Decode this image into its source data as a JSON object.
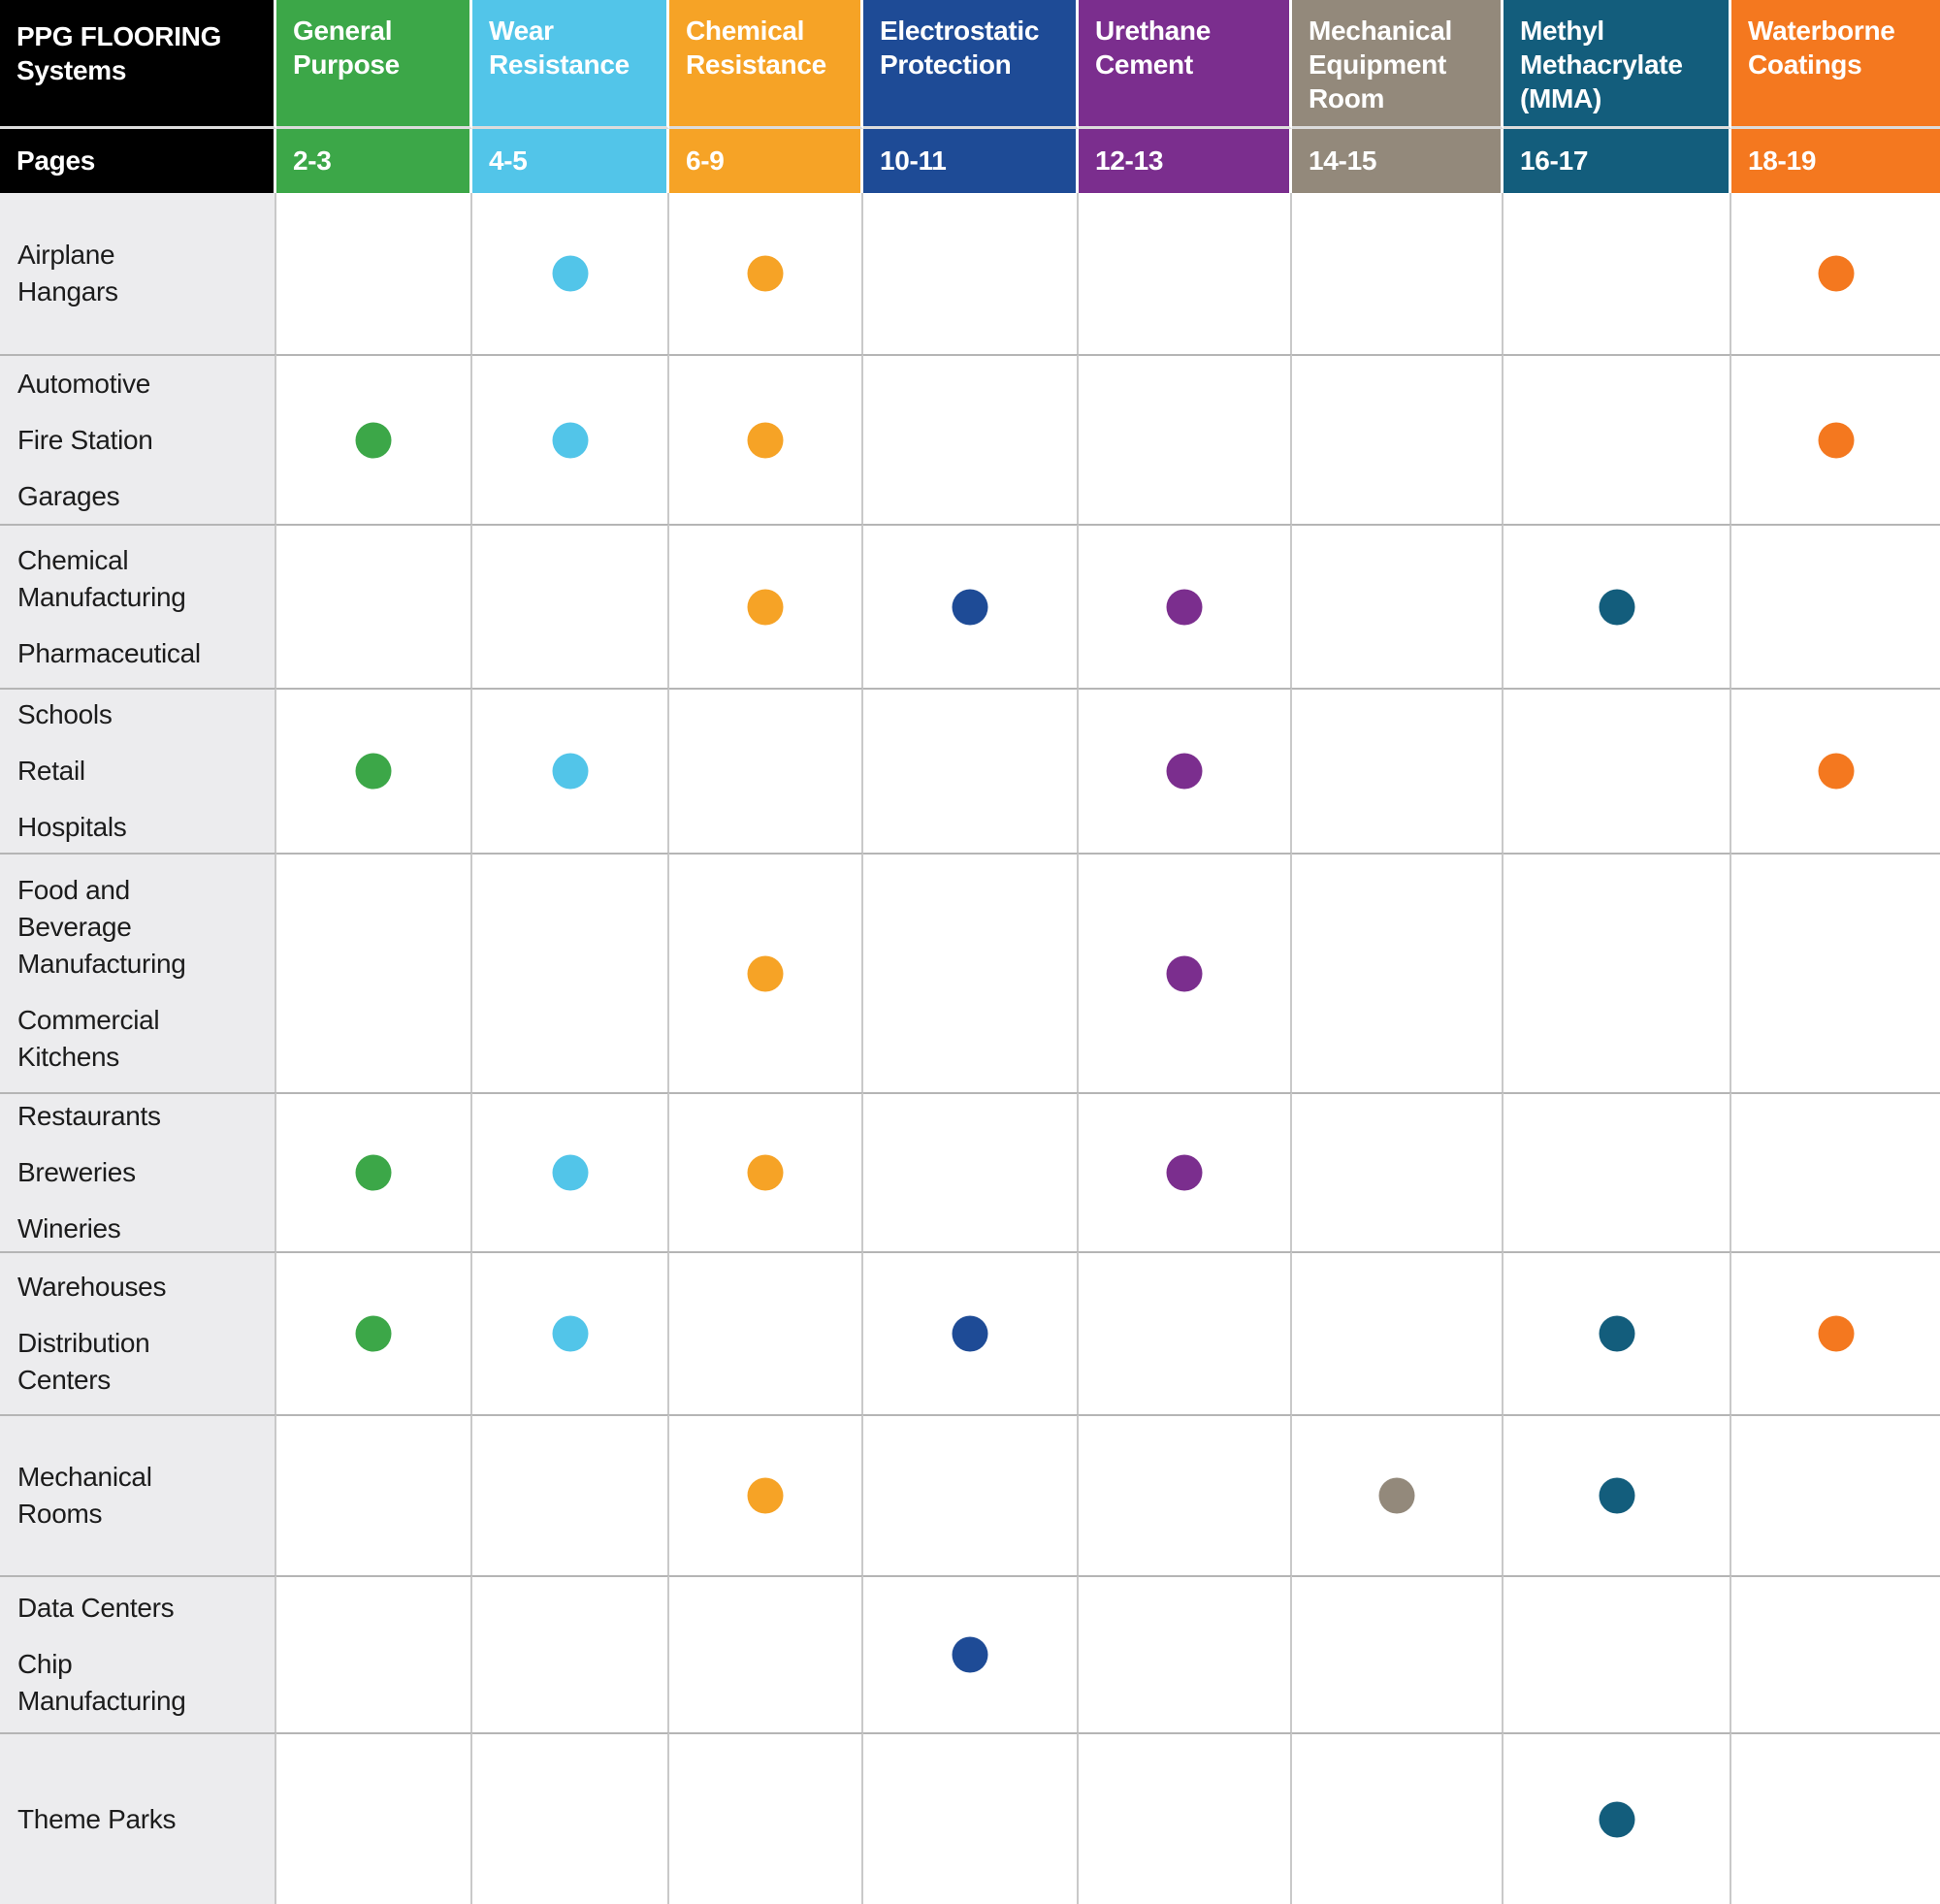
{
  "chart_data": {
    "type": "table",
    "title": "PPG FLOORING Systems",
    "pages_label": "Pages",
    "columns": [
      {
        "label": "General Purpose",
        "pages": "2-3",
        "color": "#3CA748"
      },
      {
        "label": "Wear Resistance",
        "pages": "4-5",
        "color": "#52C5E9"
      },
      {
        "label": "Chemical Resistance",
        "pages": "6-9",
        "color": "#F6A326"
      },
      {
        "label": "Electrostatic Protection",
        "pages": "10-11",
        "color": "#1E4B96"
      },
      {
        "label": "Urethane Cement",
        "pages": "12-13",
        "color": "#7B2E8E"
      },
      {
        "label": "Mechanical Equipment Room",
        "pages": "14-15",
        "color": "#93897B"
      },
      {
        "label": "Methyl Methacrylate (MMA)",
        "pages": "16-17",
        "color": "#135D7C"
      },
      {
        "label": "Waterborne Coatings",
        "pages": "18-19",
        "color": "#F4781F"
      }
    ],
    "rows": [
      {
        "label_parts": [
          "Airplane Hangars"
        ],
        "marks": [
          "Wear Resistance",
          "Chemical Resistance",
          "Waterborne Coatings"
        ]
      },
      {
        "label_parts": [
          "Automotive",
          "Fire Station",
          "Garages"
        ],
        "marks": [
          "General Purpose",
          "Wear Resistance",
          "Chemical Resistance",
          "Waterborne Coatings"
        ]
      },
      {
        "label_parts": [
          "Chemical Manufacturing",
          "Pharmaceutical"
        ],
        "marks": [
          "Chemical Resistance",
          "Electrostatic Protection",
          "Urethane Cement",
          "Methyl Methacrylate (MMA)"
        ]
      },
      {
        "label_parts": [
          "Schools",
          "Retail",
          "Hospitals"
        ],
        "marks": [
          "General Purpose",
          "Wear Resistance",
          "Urethane Cement",
          "Waterborne Coatings"
        ]
      },
      {
        "label_parts": [
          "Food and Beverage Manufacturing",
          "Commercial Kitchens"
        ],
        "marks": [
          "Chemical Resistance",
          "Urethane Cement"
        ]
      },
      {
        "label_parts": [
          "Restaurants",
          "Breweries",
          "Wineries"
        ],
        "marks": [
          "General Purpose",
          "Wear Resistance",
          "Chemical Resistance",
          "Urethane Cement"
        ]
      },
      {
        "label_parts": [
          "Warehouses",
          "Distribution Centers"
        ],
        "marks": [
          "General Purpose",
          "Wear Resistance",
          "Electrostatic Protection",
          "Methyl Methacrylate (MMA)",
          "Waterborne Coatings"
        ]
      },
      {
        "label_parts": [
          "Mechanical Rooms"
        ],
        "marks": [
          "Chemical Resistance",
          "Mechanical Equipment Room",
          "Methyl Methacrylate (MMA)"
        ]
      },
      {
        "label_parts": [
          "Data Centers",
          "Chip Manufacturing"
        ],
        "marks": [
          "Electrostatic Protection"
        ]
      },
      {
        "label_parts": [
          "Theme Parks"
        ],
        "marks": [
          "Methyl Methacrylate (MMA)"
        ]
      }
    ]
  }
}
